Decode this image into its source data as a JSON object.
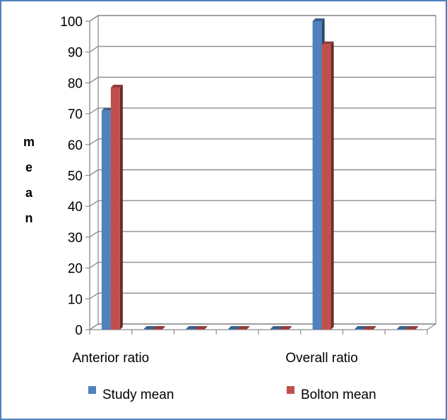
{
  "chart_data": {
    "type": "bar",
    "categories": [
      "Anterior ratio",
      "",
      "",
      "",
      "",
      "Overall ratio",
      "",
      ""
    ],
    "series": [
      {
        "name": "Study mean",
        "values": [
          71,
          0,
          0,
          0,
          0,
          100,
          0,
          0
        ]
      },
      {
        "name": "Bolton mean",
        "values": [
          78.5,
          0,
          0,
          0,
          0,
          92.5,
          0,
          0
        ]
      }
    ],
    "ylabel": "mean",
    "xlabel": "",
    "ylim": [
      0,
      100
    ],
    "yticks": [
      0,
      10,
      20,
      30,
      40,
      50,
      60,
      70,
      80,
      90,
      100
    ],
    "grid": true,
    "legend": "bottom",
    "colors": {
      "series": [
        "#4f81bd",
        "#c0504d"
      ],
      "frame": "#4f81bd",
      "grid": "#8c8c8c"
    }
  }
}
